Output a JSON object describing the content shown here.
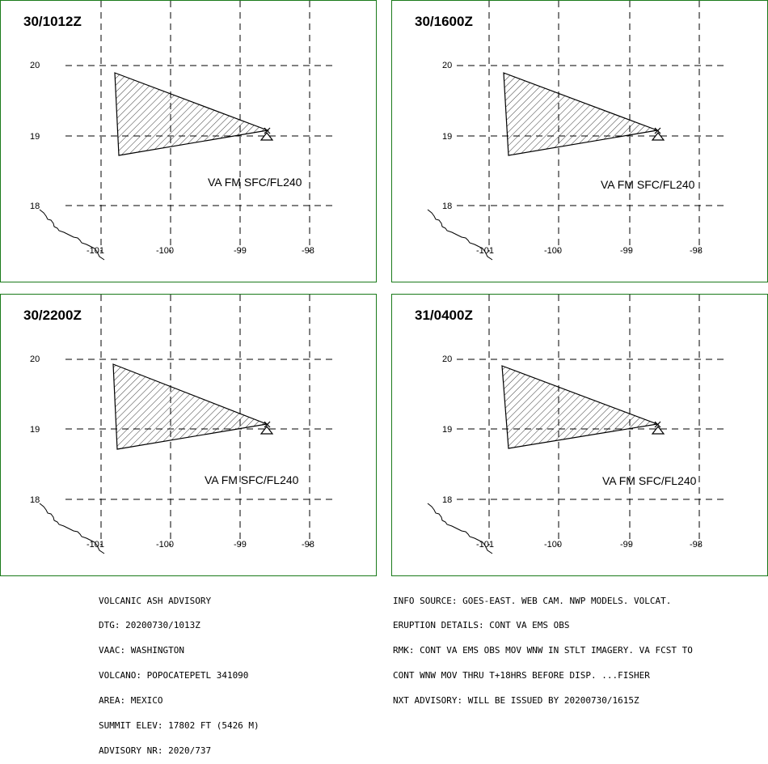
{
  "panels": [
    {
      "title": "30/1012Z",
      "va_label": "VA FM SFC/FL240"
    },
    {
      "title": "30/1600Z",
      "va_label": "VA FM SFC/FL240"
    },
    {
      "title": "30/2200Z",
      "va_label": "VA FM SFC/FL240"
    },
    {
      "title": "31/0400Z",
      "va_label": "VA FM SFC/FL240"
    }
  ],
  "lat_labels": [
    "20",
    "19",
    "18"
  ],
  "lon_labels": [
    "-101",
    "-100",
    "-99",
    "-98"
  ],
  "advisory": {
    "lines": [
      "VOLCANIC ASH ADVISORY",
      "DTG: 20200730/1013Z",
      "VAAC: WASHINGTON",
      "VOLCANO: POPOCATEPETL 341090",
      "AREA: MEXICO",
      "SUMMIT ELEV: 17802 FT (5426 M)",
      "ADVISORY NR: 2020/737"
    ]
  },
  "info": {
    "lines": [
      "INFO SOURCE: GOES-EAST. WEB CAM. NWP MODELS. VOLCAT.",
      "ERUPTION DETAILS: CONT VA EMS OBS",
      "RMK: CONT VA EMS OBS MOV WNW IN STLT IMAGERY. VA FCST TO",
      "CONT WNW MOV THRU T+18HRS BEFORE DISP. ...FISHER",
      "NXT ADVISORY: WILL BE ISSUED BY 20200730/1615Z"
    ]
  },
  "colors": {
    "border": "#1a7a1a",
    "lines": "#000000"
  }
}
